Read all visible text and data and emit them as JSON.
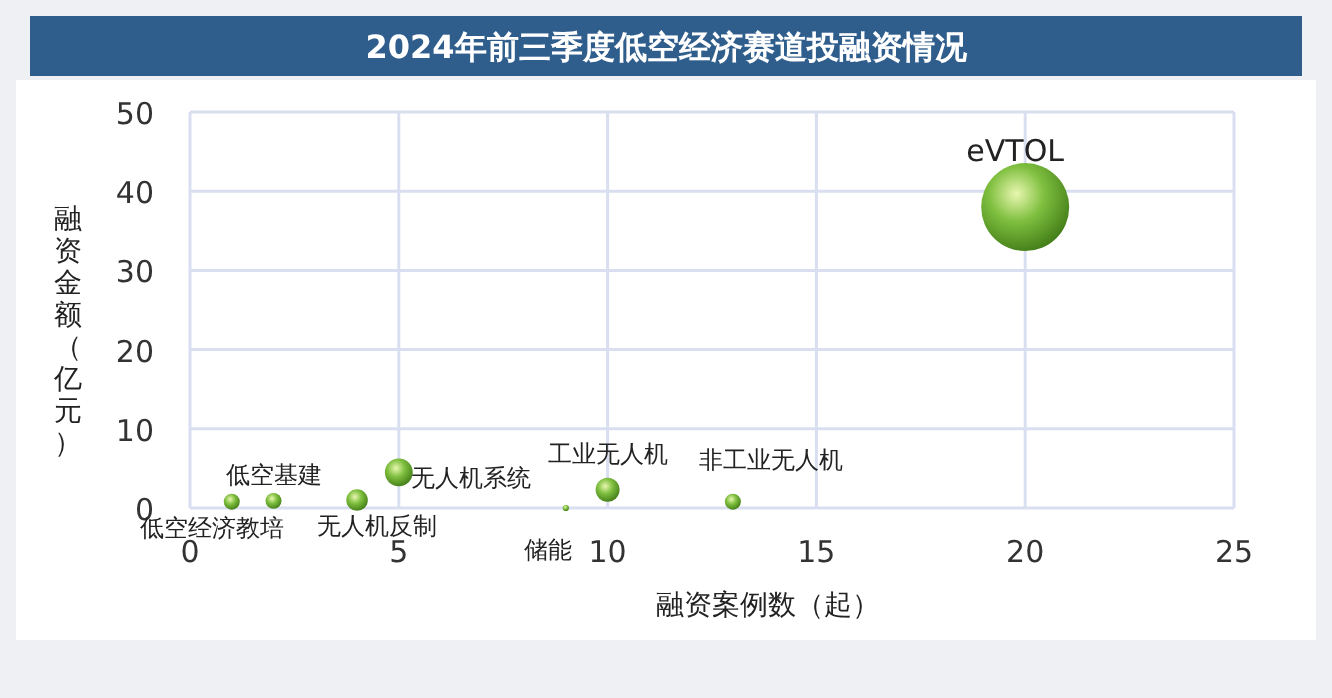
{
  "chart_data": {
    "type": "bubble",
    "title": "2024年前三季度低空经济赛道投融资情况",
    "xlabel": "融资案例数（起）",
    "ylabel": "融资金额（亿元）",
    "xlim": [
      0,
      25
    ],
    "xticks": [
      0,
      5,
      10,
      15,
      20,
      25
    ],
    "ylim": [
      0,
      50
    ],
    "yticks": [
      0,
      10,
      20,
      30,
      40,
      50
    ],
    "grid": true,
    "series": [
      {
        "name": "低空经济教培",
        "color": "#7fbf3f",
        "x": [
          1
        ],
        "values": [
          0.8
        ],
        "sizes": [
          0.033
        ]
      },
      {
        "name": "低空基建",
        "color": "#7fbf3f",
        "x": [
          2
        ],
        "values": [
          0.9
        ],
        "sizes": [
          0.033
        ]
      },
      {
        "name": "无人机反制",
        "color": "#7fbf3f",
        "x": [
          4
        ],
        "values": [
          1
        ],
        "sizes": [
          0.06
        ]
      },
      {
        "name": "无人机系统",
        "color": "#7fbf3f",
        "x": [
          5
        ],
        "values": [
          4.5
        ],
        "sizes": [
          0.1
        ]
      },
      {
        "name": "储能",
        "color": "#7fbf3f",
        "x": [
          9
        ],
        "values": [
          0
        ],
        "sizes": [
          0.005
        ]
      },
      {
        "name": "工业无人机",
        "color": "#7fbf3f",
        "x": [
          10
        ],
        "values": [
          2.3
        ],
        "sizes": [
          0.074
        ]
      },
      {
        "name": "非工业无人机",
        "color": "#7fbf3f",
        "x": [
          13
        ],
        "values": [
          0.8
        ],
        "sizes": [
          0.033
        ]
      },
      {
        "name": "eVTOL",
        "color": "#7fbf3f",
        "x": [
          20
        ],
        "values": [
          38
        ],
        "sizes": [
          1
        ]
      }
    ]
  }
}
